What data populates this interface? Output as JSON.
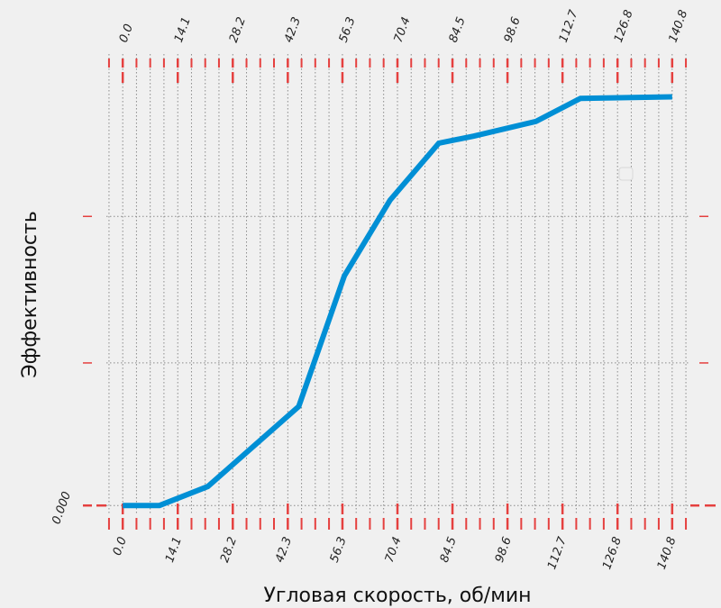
{
  "chart_data": {
    "type": "line",
    "title": "",
    "xlabel": "Угловая скорость, об/мин",
    "ylabel": "Эффективность",
    "xlim": [
      -4.2,
      145
    ],
    "ylim": [
      -0.02,
      1.14
    ],
    "x_ticks": [
      0.0,
      14.1,
      28.2,
      42.3,
      56.3,
      70.4,
      84.5,
      98.6,
      112.7,
      126.8,
      140.8
    ],
    "x_tick_labels": [
      "0.0",
      "14.1",
      "28.2",
      "42.3",
      "56.3",
      "70.4",
      "84.5",
      "98.6",
      "112.7",
      "126.8",
      "140.8"
    ],
    "y_ticks": [
      0.0,
      0.36,
      0.73
    ],
    "y_tick_labels": [
      "0.000",
      "",
      ""
    ],
    "grid": true,
    "legend": {
      "placement": "center-right",
      "entries": []
    },
    "series": [
      {
        "color": "#008fd5",
        "x": [
          0.0,
          9.4,
          21.8,
          45.1,
          56.8,
          68.5,
          81.0,
          90.0,
          105.9,
          117.3,
          140.8
        ],
        "y": [
          0.0,
          0.0,
          0.048,
          0.25,
          0.58,
          0.771,
          0.915,
          0.933,
          0.97,
          1.028,
          1.032
        ]
      }
    ]
  },
  "colors": {
    "background": "#f0f0f0",
    "line": "#008fd5",
    "tick_marks": "#e5403f",
    "grid": "#8b8b8b"
  }
}
